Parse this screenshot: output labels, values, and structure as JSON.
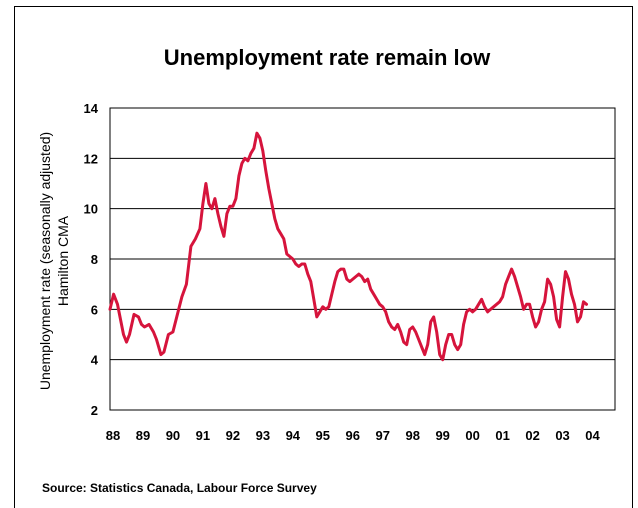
{
  "chart_data": {
    "type": "line",
    "title": "Unemployment rate remain low",
    "ylabel_lines": [
      "Unemployment rate  (seasonally adjusted)",
      "Hamilton CMA"
    ],
    "xlabel": "",
    "source": "Source: Statistics Canada, Labour Force Survey",
    "ylim": [
      2,
      14
    ],
    "yticks": [
      2,
      4,
      6,
      8,
      10,
      12,
      14
    ],
    "grid": true,
    "legend": "none",
    "x_tick_labels": [
      "88",
      "89",
      "90",
      "91",
      "92",
      "93",
      "94",
      "95",
      "96",
      "97",
      "98",
      "99",
      "00",
      "01",
      "02",
      "03",
      "04"
    ],
    "x_range": [
      1988.0,
      2004.85
    ],
    "series": [
      {
        "color": "#d6143c",
        "points": [
          [
            1988.0,
            6.0
          ],
          [
            1988.12,
            6.6
          ],
          [
            1988.25,
            6.2
          ],
          [
            1988.35,
            5.6
          ],
          [
            1988.45,
            5.0
          ],
          [
            1988.55,
            4.7
          ],
          [
            1988.65,
            5.0
          ],
          [
            1988.8,
            5.8
          ],
          [
            1988.95,
            5.7
          ],
          [
            1989.05,
            5.4
          ],
          [
            1989.15,
            5.3
          ],
          [
            1989.3,
            5.4
          ],
          [
            1989.45,
            5.1
          ],
          [
            1989.55,
            4.8
          ],
          [
            1989.7,
            4.2
          ],
          [
            1989.8,
            4.3
          ],
          [
            1989.95,
            5.0
          ],
          [
            1990.1,
            5.1
          ],
          [
            1990.25,
            5.8
          ],
          [
            1990.4,
            6.5
          ],
          [
            1990.55,
            7.0
          ],
          [
            1990.7,
            8.5
          ],
          [
            1990.85,
            8.8
          ],
          [
            1991.0,
            9.2
          ],
          [
            1991.1,
            10.2
          ],
          [
            1991.2,
            11.0
          ],
          [
            1991.3,
            10.2
          ],
          [
            1991.4,
            10.0
          ],
          [
            1991.5,
            10.4
          ],
          [
            1991.6,
            9.8
          ],
          [
            1991.7,
            9.3
          ],
          [
            1991.8,
            8.9
          ],
          [
            1991.9,
            9.8
          ],
          [
            1992.0,
            10.1
          ],
          [
            1992.1,
            10.1
          ],
          [
            1992.2,
            10.4
          ],
          [
            1992.3,
            11.3
          ],
          [
            1992.4,
            11.8
          ],
          [
            1992.5,
            12.0
          ],
          [
            1992.6,
            11.9
          ],
          [
            1992.7,
            12.2
          ],
          [
            1992.8,
            12.4
          ],
          [
            1992.9,
            13.0
          ],
          [
            1993.0,
            12.8
          ],
          [
            1993.1,
            12.3
          ],
          [
            1993.2,
            11.5
          ],
          [
            1993.3,
            10.8
          ],
          [
            1993.4,
            10.2
          ],
          [
            1993.5,
            9.6
          ],
          [
            1993.6,
            9.2
          ],
          [
            1993.7,
            9.0
          ],
          [
            1993.8,
            8.8
          ],
          [
            1993.9,
            8.2
          ],
          [
            1994.0,
            8.1
          ],
          [
            1994.1,
            8.0
          ],
          [
            1994.2,
            7.8
          ],
          [
            1994.3,
            7.7
          ],
          [
            1994.4,
            7.8
          ],
          [
            1994.5,
            7.8
          ],
          [
            1994.6,
            7.4
          ],
          [
            1994.7,
            7.1
          ],
          [
            1994.8,
            6.4
          ],
          [
            1994.9,
            5.7
          ],
          [
            1995.0,
            5.9
          ],
          [
            1995.1,
            6.1
          ],
          [
            1995.2,
            6.0
          ],
          [
            1995.3,
            6.1
          ],
          [
            1995.4,
            6.6
          ],
          [
            1995.5,
            7.1
          ],
          [
            1995.6,
            7.5
          ],
          [
            1995.7,
            7.6
          ],
          [
            1995.8,
            7.6
          ],
          [
            1995.9,
            7.2
          ],
          [
            1996.0,
            7.1
          ],
          [
            1996.1,
            7.2
          ],
          [
            1996.2,
            7.3
          ],
          [
            1996.3,
            7.4
          ],
          [
            1996.4,
            7.3
          ],
          [
            1996.5,
            7.1
          ],
          [
            1996.6,
            7.2
          ],
          [
            1996.7,
            6.8
          ],
          [
            1996.8,
            6.6
          ],
          [
            1996.9,
            6.4
          ],
          [
            1997.0,
            6.2
          ],
          [
            1997.1,
            6.1
          ],
          [
            1997.2,
            5.9
          ],
          [
            1997.3,
            5.5
          ],
          [
            1997.4,
            5.3
          ],
          [
            1997.5,
            5.2
          ],
          [
            1997.6,
            5.4
          ],
          [
            1997.7,
            5.1
          ],
          [
            1997.8,
            4.7
          ],
          [
            1997.9,
            4.6
          ],
          [
            1998.0,
            5.2
          ],
          [
            1998.1,
            5.3
          ],
          [
            1998.2,
            5.1
          ],
          [
            1998.3,
            4.8
          ],
          [
            1998.4,
            4.5
          ],
          [
            1998.5,
            4.2
          ],
          [
            1998.6,
            4.6
          ],
          [
            1998.7,
            5.5
          ],
          [
            1998.8,
            5.7
          ],
          [
            1998.9,
            5.1
          ],
          [
            1999.0,
            4.2
          ],
          [
            1999.1,
            4.0
          ],
          [
            1999.2,
            4.6
          ],
          [
            1999.3,
            5.0
          ],
          [
            1999.4,
            5.0
          ],
          [
            1999.5,
            4.6
          ],
          [
            1999.6,
            4.4
          ],
          [
            1999.7,
            4.6
          ],
          [
            1999.8,
            5.4
          ],
          [
            1999.9,
            5.9
          ],
          [
            2000.0,
            6.0
          ],
          [
            2000.1,
            5.9
          ],
          [
            2000.2,
            6.0
          ],
          [
            2000.3,
            6.2
          ],
          [
            2000.4,
            6.4
          ],
          [
            2000.5,
            6.1
          ],
          [
            2000.6,
            5.9
          ],
          [
            2000.7,
            6.0
          ],
          [
            2000.8,
            6.1
          ],
          [
            2000.9,
            6.2
          ],
          [
            2001.0,
            6.3
          ],
          [
            2001.1,
            6.5
          ],
          [
            2001.2,
            7.0
          ],
          [
            2001.3,
            7.3
          ],
          [
            2001.4,
            7.6
          ],
          [
            2001.5,
            7.3
          ],
          [
            2001.6,
            6.9
          ],
          [
            2001.7,
            6.5
          ],
          [
            2001.8,
            6.0
          ],
          [
            2001.9,
            6.2
          ],
          [
            2002.0,
            6.2
          ],
          [
            2002.1,
            5.7
          ],
          [
            2002.2,
            5.3
          ],
          [
            2002.3,
            5.5
          ],
          [
            2002.4,
            6.0
          ],
          [
            2002.5,
            6.3
          ],
          [
            2002.6,
            7.2
          ],
          [
            2002.7,
            7.0
          ],
          [
            2002.8,
            6.5
          ],
          [
            2002.9,
            5.6
          ],
          [
            2003.0,
            5.3
          ],
          [
            2003.1,
            6.5
          ],
          [
            2003.2,
            7.5
          ],
          [
            2003.3,
            7.2
          ],
          [
            2003.4,
            6.6
          ],
          [
            2003.5,
            6.2
          ],
          [
            2003.6,
            5.5
          ],
          [
            2003.7,
            5.7
          ],
          [
            2003.8,
            6.3
          ],
          [
            2003.9,
            6.2
          ]
        ]
      }
    ]
  }
}
